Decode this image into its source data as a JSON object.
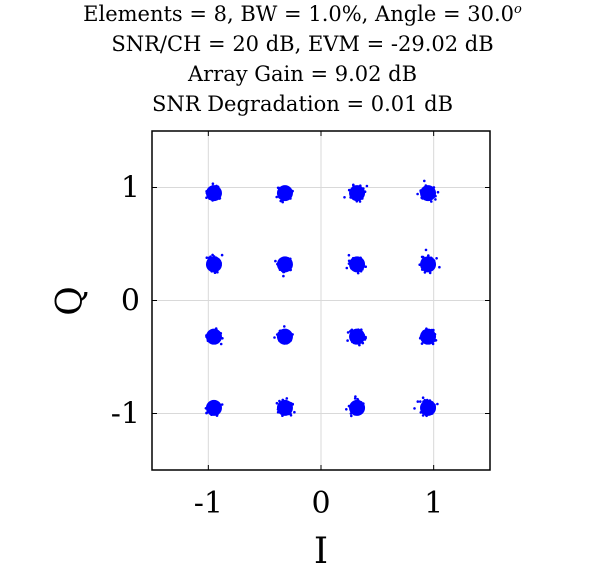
{
  "titles": {
    "line1_main": "Elements = 8, BW = 1.0%, Angle = 30.0",
    "line1_sup": "o",
    "line2": "SNR/CH = 20 dB, EVM = -29.02 dB",
    "line3": "Array Gain = 9.02 dB",
    "line4": "SNR Degradation = 0.01 dB"
  },
  "colors": {
    "points": "#0000ff",
    "grid": "#d9d9d9",
    "axes": "#000000"
  },
  "chart_data": {
    "type": "scatter",
    "xlabel": "I",
    "ylabel": "Q",
    "xlim": [
      -1.5,
      1.5
    ],
    "ylim": [
      -1.5,
      1.5
    ],
    "xticks": [
      -1,
      0,
      1
    ],
    "yticks": [
      -1,
      0,
      1
    ],
    "xtick_labels": [
      "-1",
      "0",
      "1"
    ],
    "ytick_labels": [
      "-1",
      "0",
      "1"
    ],
    "grid": true,
    "series": [
      {
        "points": [
          [
            -0.95,
            0.95
          ],
          [
            -0.32,
            0.95
          ],
          [
            0.32,
            0.95
          ],
          [
            0.95,
            0.95
          ],
          [
            -0.95,
            0.32
          ],
          [
            -0.32,
            0.32
          ],
          [
            0.32,
            0.32
          ],
          [
            0.95,
            0.32
          ],
          [
            -0.95,
            -0.32
          ],
          [
            -0.32,
            -0.32
          ],
          [
            0.32,
            -0.32
          ],
          [
            0.95,
            -0.32
          ],
          [
            -0.95,
            -0.95
          ],
          [
            -0.32,
            -0.95
          ],
          [
            0.32,
            -0.95
          ],
          [
            0.95,
            -0.95
          ]
        ]
      }
    ]
  }
}
